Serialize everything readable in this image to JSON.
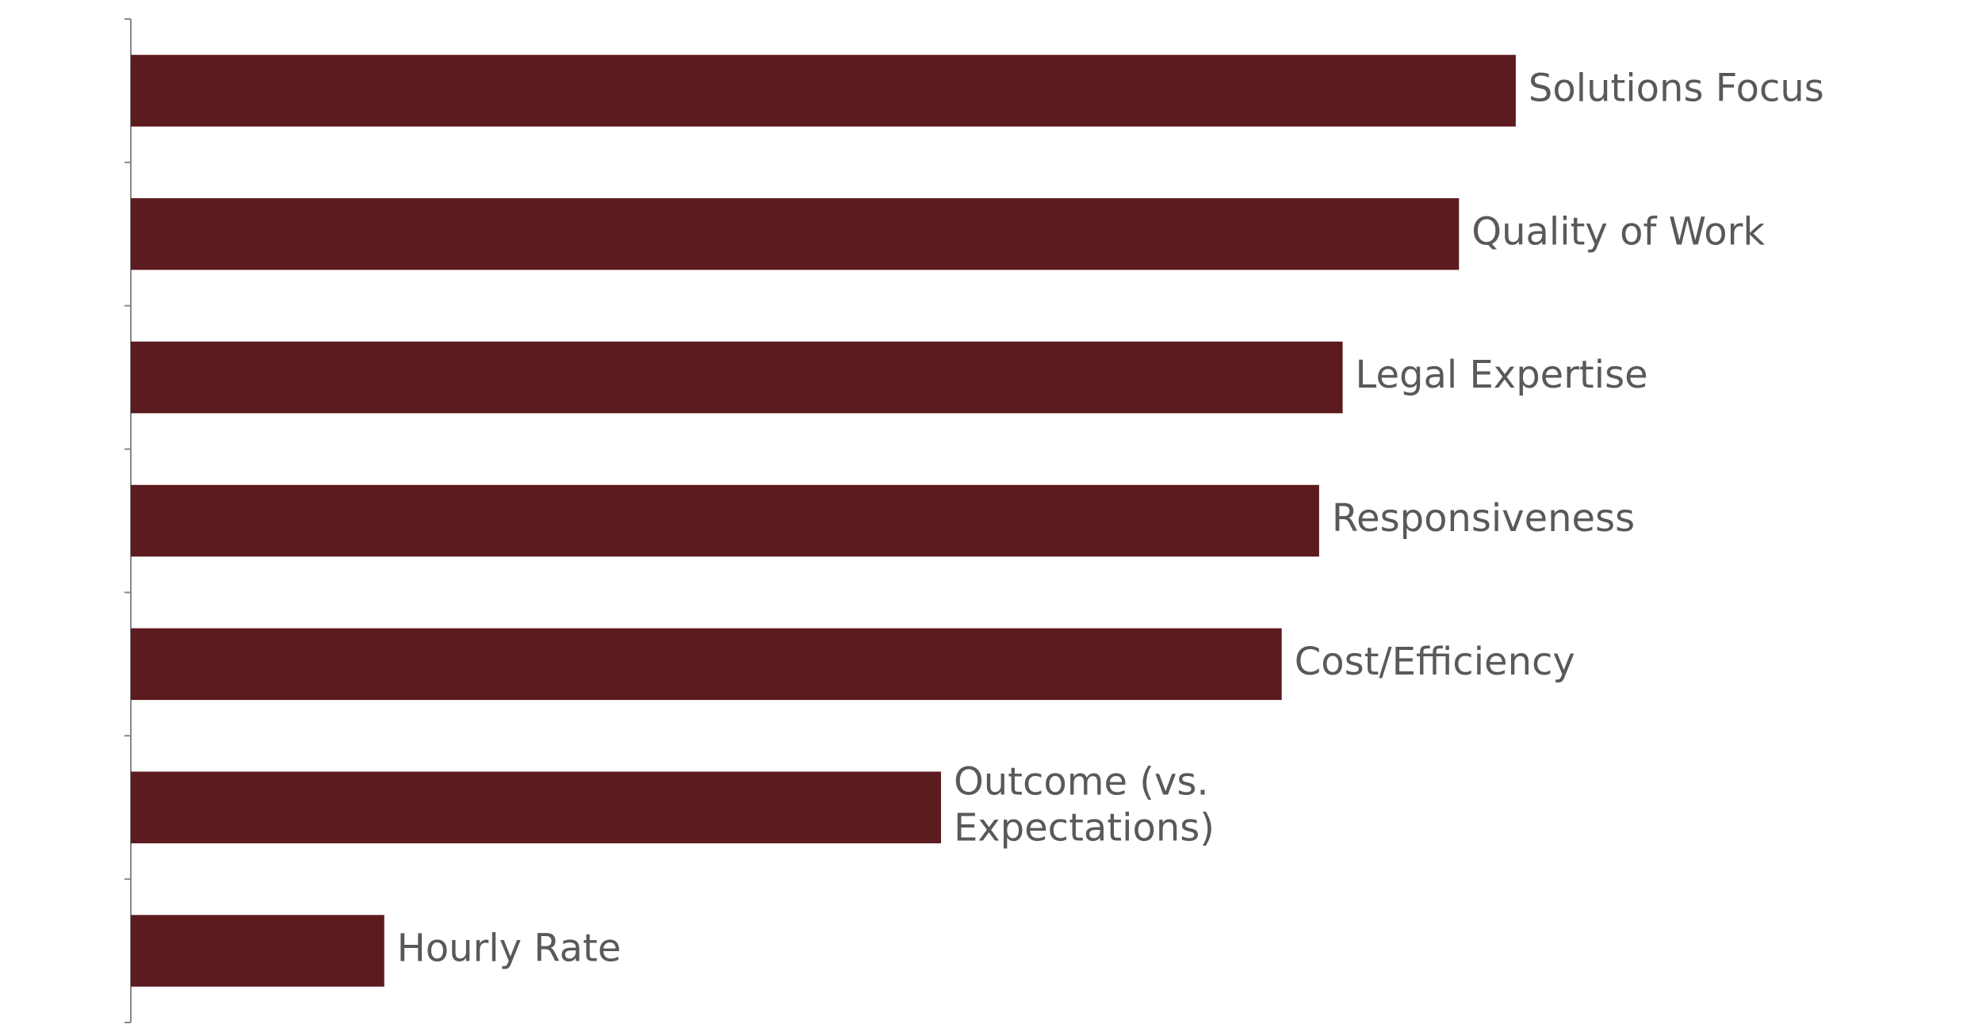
{
  "chart_data": {
    "type": "bar",
    "orientation": "horizontal",
    "categories": [
      "Solutions Focus",
      "Quality of Work",
      "Legal Expertise",
      "Responsiveness",
      "Cost/Efficiency",
      "Outcome (vs. Expectations)",
      "Hourly Rate"
    ],
    "values": [
      100,
      95.9,
      87.5,
      85.8,
      83.1,
      58.5,
      18.3
    ],
    "color": "#5c1b1f",
    "xlim": [
      0,
      130
    ]
  }
}
